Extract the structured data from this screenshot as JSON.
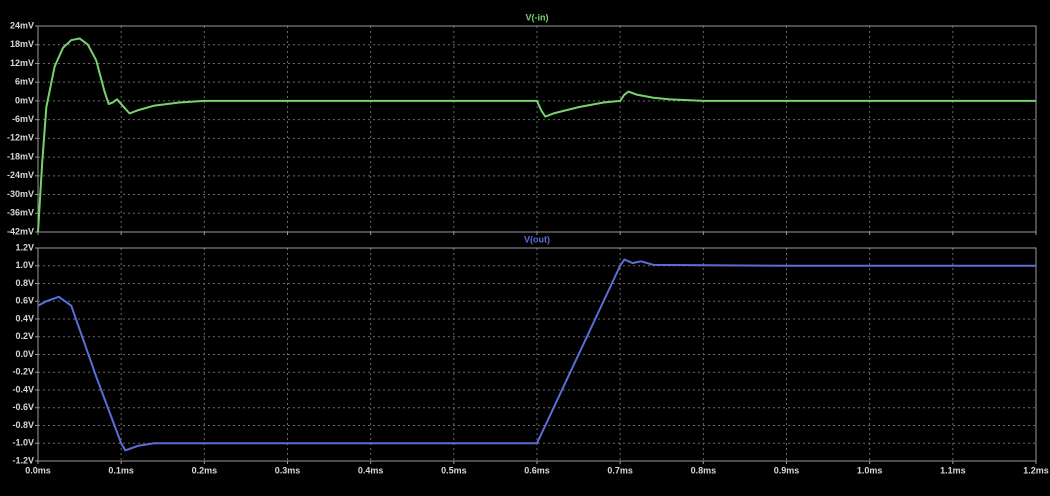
{
  "chart_data": [
    {
      "type": "line",
      "title": "V(-in)",
      "color": "#78d36e",
      "x": [
        0,
        0.005,
        0.01,
        0.02,
        0.03,
        0.04,
        0.05,
        0.06,
        0.07,
        0.08,
        0.085,
        0.09,
        0.095,
        0.1,
        0.11,
        0.12,
        0.14,
        0.17,
        0.2,
        0.3,
        0.5,
        0.6,
        0.605,
        0.61,
        0.62,
        0.65,
        0.68,
        0.7,
        0.705,
        0.71,
        0.72,
        0.74,
        0.76,
        0.8,
        1.0,
        1.2
      ],
      "values": [
        -42,
        -20,
        -2,
        11,
        17,
        19.5,
        20,
        18,
        13,
        3,
        -1,
        -0.5,
        0.5,
        -1,
        -4,
        -3,
        -1.5,
        -0.5,
        0,
        0,
        0,
        0,
        -3,
        -5,
        -4,
        -2,
        -0.5,
        0,
        2,
        3,
        2,
        1,
        0.5,
        0,
        0,
        0
      ],
      "xlim": [
        0,
        1.2
      ],
      "xticks": [
        0,
        0.1,
        0.2,
        0.3,
        0.4,
        0.5,
        0.6,
        0.7,
        0.8,
        0.9,
        1.0,
        1.1,
        1.2
      ],
      "ylim": [
        -42,
        24
      ],
      "yticks": [
        {
          "value": 24,
          "label": "24mV"
        },
        {
          "value": 18,
          "label": "18mV"
        },
        {
          "value": 12,
          "label": "12mV"
        },
        {
          "value": 6,
          "label": "6mV"
        },
        {
          "value": 0,
          "label": "0mV"
        },
        {
          "value": -6,
          "label": "-6mV"
        },
        {
          "value": -12,
          "label": "-12mV"
        },
        {
          "value": -18,
          "label": "-18mV"
        },
        {
          "value": -24,
          "label": "-24mV"
        },
        {
          "value": -30,
          "label": "-30mV"
        },
        {
          "value": -36,
          "label": "-36mV"
        },
        {
          "value": -42,
          "label": "-42mV"
        }
      ],
      "grid": true
    },
    {
      "type": "line",
      "title": "V(out)",
      "color": "#5a6ed8",
      "x": [
        0,
        0.01,
        0.025,
        0.04,
        0.07,
        0.1,
        0.105,
        0.12,
        0.14,
        0.3,
        0.6,
        0.7,
        0.705,
        0.715,
        0.725,
        0.74,
        0.9,
        1.2
      ],
      "values": [
        0.55,
        0.6,
        0.65,
        0.55,
        -0.25,
        -1.0,
        -1.08,
        -1.03,
        -1.0,
        -1.0,
        -1.0,
        1.0,
        1.07,
        1.03,
        1.05,
        1.01,
        1.0,
        1.0
      ],
      "xlim": [
        0,
        1.2
      ],
      "xticks": [
        {
          "value": 0,
          "label": "0.0ms"
        },
        {
          "value": 0.1,
          "label": "0.1ms"
        },
        {
          "value": 0.2,
          "label": "0.2ms"
        },
        {
          "value": 0.3,
          "label": "0.3ms"
        },
        {
          "value": 0.4,
          "label": "0.4ms"
        },
        {
          "value": 0.5,
          "label": "0.5ms"
        },
        {
          "value": 0.6,
          "label": "0.6ms"
        },
        {
          "value": 0.7,
          "label": "0.7ms"
        },
        {
          "value": 0.8,
          "label": "0.8ms"
        },
        {
          "value": 0.9,
          "label": "0.9ms"
        },
        {
          "value": 1.0,
          "label": "1.0ms"
        },
        {
          "value": 1.1,
          "label": "1.1ms"
        },
        {
          "value": 1.2,
          "label": "1.2ms"
        }
      ],
      "ylim": [
        -1.2,
        1.2
      ],
      "yticks": [
        {
          "value": 1.2,
          "label": "1.2V"
        },
        {
          "value": 1.0,
          "label": "1.0V"
        },
        {
          "value": 0.8,
          "label": "0.8V"
        },
        {
          "value": 0.6,
          "label": "0.6V"
        },
        {
          "value": 0.4,
          "label": "0.4V"
        },
        {
          "value": 0.2,
          "label": "0.2V"
        },
        {
          "value": 0,
          "label": "0.0V"
        },
        {
          "value": -0.2,
          "label": "-0.2V"
        },
        {
          "value": -0.4,
          "label": "-0.4V"
        },
        {
          "value": -0.6,
          "label": "-0.6V"
        },
        {
          "value": -0.8,
          "label": "-0.8V"
        },
        {
          "value": -1.0,
          "label": "-1.0V"
        },
        {
          "value": -1.2,
          "label": "-1.2V"
        }
      ],
      "grid": true
    }
  ]
}
